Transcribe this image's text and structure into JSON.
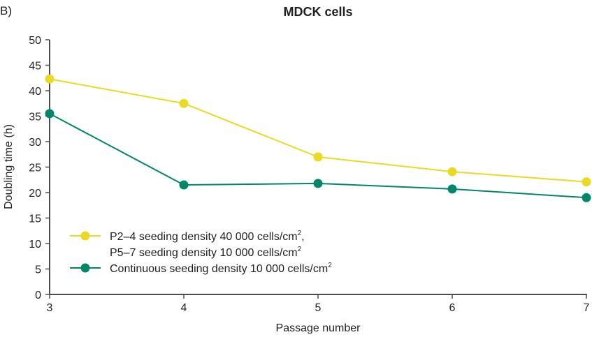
{
  "panel_label": "B)",
  "chart_data": {
    "type": "line",
    "title": "MDCK cells",
    "xlabel": "Passage number",
    "ylabel": "Doubling time (h)",
    "x": [
      3,
      4,
      5,
      6,
      7
    ],
    "xlim": [
      3,
      7
    ],
    "ylim": [
      0,
      50
    ],
    "xticks": [
      "3",
      "4",
      "5",
      "6",
      "7"
    ],
    "yticks": [
      "0",
      "5",
      "10",
      "15",
      "20",
      "25",
      "30",
      "35",
      "40",
      "45",
      "50"
    ],
    "grid": false,
    "legend_position": "bottom-left",
    "series": [
      {
        "name": "P2–4 seeding density 40 000 cells/cm², P5–7 seeding density 10 000 cells/cm²",
        "legend_lines": [
          {
            "text": "P2–4 seeding density 40 000 cells/cm",
            "sup": "2",
            "suffix": ","
          },
          {
            "text": "P5–7 seeding density 10 000 cells/cm",
            "sup": "2",
            "suffix": ""
          }
        ],
        "color": "#ecd922",
        "values": [
          42.3,
          37.5,
          27.0,
          24.1,
          22.1
        ]
      },
      {
        "name": "Continuous seeding density 10 000 cells/cm²",
        "legend_lines": [
          {
            "text": "Continuous seeding density 10 000 cells/cm",
            "sup": "2",
            "suffix": ""
          }
        ],
        "color": "#00876a",
        "values": [
          35.5,
          21.5,
          21.8,
          20.7,
          19.0
        ]
      }
    ]
  }
}
